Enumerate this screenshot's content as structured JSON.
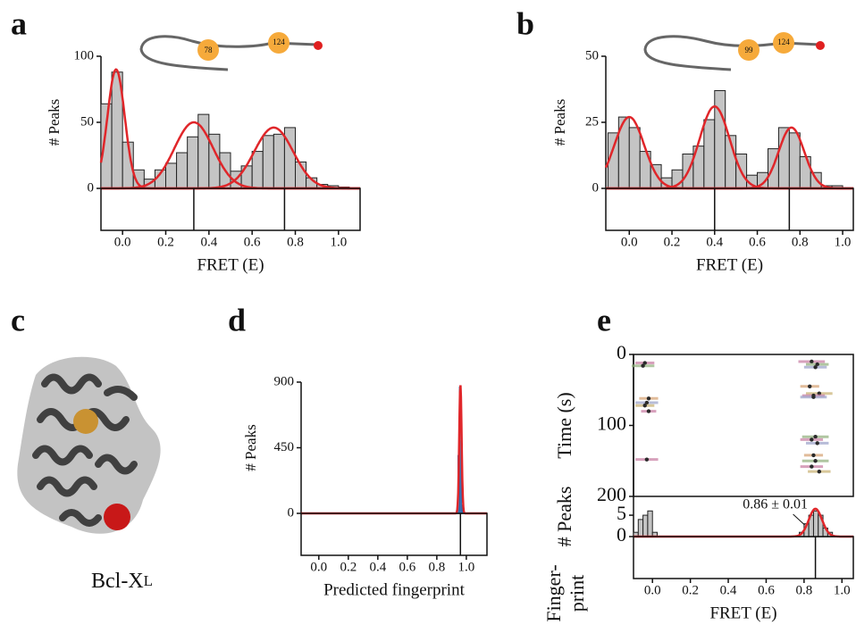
{
  "chart_data": [
    {
      "type": "histogram",
      "panel_label": "a",
      "xlabel": "FRET (E)",
      "ylabel": "# Peaks",
      "construct": [
        "78",
        "124"
      ],
      "bins": [
        -0.1,
        -0.05,
        0,
        0.05,
        0.1,
        0.15,
        0.2,
        0.25,
        0.3,
        0.35,
        0.4,
        0.45,
        0.5,
        0.55,
        0.6,
        0.65,
        0.7,
        0.75,
        0.8,
        0.85,
        0.9,
        0.95,
        1.0,
        1.05
      ],
      "values": [
        64,
        88,
        35,
        14,
        7,
        14,
        19,
        27,
        39,
        56,
        41,
        27,
        13,
        17,
        28,
        40,
        41,
        46,
        20,
        8,
        3,
        2,
        1
      ],
      "color": "#c4c4c4",
      "fit_color": "#e0262a",
      "fits": [
        {
          "amplitude": 90,
          "mean": -0.03,
          "sd": 0.04
        },
        {
          "amplitude": 50,
          "mean": 0.33,
          "sd": 0.09
        },
        {
          "amplitude": 46,
          "mean": 0.7,
          "sd": 0.09
        }
      ],
      "fingerprint": [
        0.33,
        0.75
      ],
      "xlim": [
        -0.1,
        1.1
      ],
      "ylim": [
        0,
        100
      ],
      "xticks": [
        {
          "value": 0,
          "label": "0.0"
        },
        0.2,
        0.4,
        0.6,
        0.8,
        {
          "value": 1,
          "label": "1.0"
        }
      ],
      "yticks": [
        0,
        50,
        100
      ]
    },
    {
      "type": "histogram",
      "panel_label": "b",
      "xlabel": "FRET (E)",
      "ylabel": "# Peaks",
      "construct": [
        "99",
        "124"
      ],
      "bins": [
        -0.1,
        -0.05,
        0,
        0.05,
        0.1,
        0.15,
        0.2,
        0.25,
        0.3,
        0.35,
        0.4,
        0.45,
        0.5,
        0.55,
        0.6,
        0.65,
        0.7,
        0.75,
        0.8,
        0.85,
        0.9,
        0.95,
        1.0,
        1.05
      ],
      "values": [
        21,
        27,
        23,
        14,
        9,
        4,
        7,
        13,
        16,
        26,
        37,
        20,
        13,
        5,
        6,
        15,
        23,
        21,
        12,
        6,
        1,
        1,
        0
      ],
      "color": "#c4c4c4",
      "fit_color": "#e0262a",
      "fits": [
        {
          "amplitude": 27,
          "mean": 0.0,
          "sd": 0.07
        },
        {
          "amplitude": 31,
          "mean": 0.4,
          "sd": 0.07
        },
        {
          "amplitude": 23,
          "mean": 0.76,
          "sd": 0.06
        }
      ],
      "fingerprint": [
        0.4,
        0.75
      ],
      "xlim": [
        -0.11,
        1.05
      ],
      "ylim": [
        0,
        50
      ],
      "xticks": [
        {
          "value": 0,
          "label": "0.0"
        },
        0.2,
        0.4,
        0.6,
        0.8,
        {
          "value": 1,
          "label": "1.0"
        }
      ],
      "yticks": [
        0,
        25,
        50
      ]
    },
    {
      "type": "histogram",
      "panel_label": "d",
      "xlabel": "Predicted fingerprint",
      "ylabel": "# Peaks",
      "bins": [
        0.92,
        0.93,
        0.94,
        0.95,
        0.96,
        0.97,
        0.98,
        0.99,
        1.0
      ],
      "values": [
        2,
        20,
        400,
        870,
        500,
        60,
        5,
        0
      ],
      "color": "#2a64a8",
      "fit_color": "#e0262a",
      "fits": [
        {
          "amplitude": 880,
          "mean": 0.96,
          "sd": 0.008
        }
      ],
      "fingerprint": [
        0.96
      ],
      "xlim": [
        -0.12,
        1.14
      ],
      "ylim": [
        0,
        900
      ],
      "xticks": [
        {
          "value": 0,
          "label": "0.0"
        },
        0.2,
        0.4,
        0.6,
        0.8,
        {
          "value": 1,
          "label": "1.0"
        }
      ],
      "yticks": [
        0,
        450,
        900
      ]
    },
    {
      "type": "scatter",
      "panel_label": "e",
      "ylabel": "Time (s)",
      "y_inverted": true,
      "x": [
        -0.04,
        -0.05,
        -0.02,
        -0.03,
        -0.04,
        -0.02,
        -0.03,
        0.84,
        0.87,
        0.86,
        0.83,
        0.88,
        0.85,
        0.86,
        0.84,
        0.87,
        0.85,
        0.86,
        0.84,
        0.88,
        0.85
      ],
      "values": [
        12,
        16,
        62,
        68,
        72,
        80,
        148,
        10,
        14,
        18,
        45,
        55,
        58,
        116,
        120,
        125,
        142,
        150,
        158,
        165,
        60
      ],
      "xerr": [
        0.05,
        0.06,
        0.05,
        0.06,
        0.05,
        0.04,
        0.06,
        0.07,
        0.06,
        0.06,
        0.05,
        0.07,
        0.06,
        0.07,
        0.06,
        0.06,
        0.05,
        0.07,
        0.06,
        0.06,
        0.07
      ],
      "colors": [
        "#c77aa0",
        "#8fae7a",
        "#d5a070",
        "#9aa0c8",
        "#c8b070",
        "#c77aa0",
        "#c77aa0",
        "#c77aa0",
        "#8fae7a",
        "#9aa0c8",
        "#d5a070",
        "#c8b070",
        "#c77aa0",
        "#8fae7a",
        "#c77aa0",
        "#9aa0c8",
        "#d5a070",
        "#8fae7a",
        "#c77aa0",
        "#c8b070",
        "#9aa0c8"
      ],
      "point_color": "#2a2a2a",
      "xlim": [
        -0.1,
        1.06
      ],
      "ylim": [
        0,
        200
      ],
      "yticks": [
        0,
        100,
        200
      ]
    },
    {
      "type": "histogram",
      "xlabel": "FRET (E)",
      "ylabel": "# Peaks",
      "fingerprint_label": [
        "Finger-",
        "print"
      ],
      "annotation": "0.86 ± 0.01",
      "bins": [
        -0.1,
        -0.075,
        -0.05,
        -0.025,
        0,
        0.025,
        0.05,
        0.075,
        0.1,
        0.125,
        0.15,
        0.175,
        0.2,
        0.225,
        0.25,
        0.275,
        0.3,
        0.325,
        0.35,
        0.375,
        0.4,
        0.425,
        0.45,
        0.475,
        0.5,
        0.525,
        0.55,
        0.575,
        0.6,
        0.625,
        0.65,
        0.675,
        0.7,
        0.725,
        0.75,
        0.775,
        0.8,
        0.825,
        0.85,
        0.875,
        0.9,
        0.925,
        0.95,
        0.975,
        1.0
      ],
      "values": [
        1,
        4,
        5,
        6,
        1,
        0,
        0,
        0,
        0,
        0,
        0,
        0,
        0,
        0,
        0,
        0,
        0,
        0,
        0,
        0,
        0,
        0,
        0,
        0,
        0,
        0,
        0,
        0,
        0,
        0,
        0,
        0,
        0,
        0,
        0,
        1,
        3,
        5,
        6,
        5,
        2,
        1,
        0,
        0
      ],
      "color": "#c4c4c4",
      "fit_color": "#e0262a",
      "fits": [
        {
          "amplitude": 6.5,
          "mean": 0.86,
          "sd": 0.035
        }
      ],
      "fingerprint": [
        0.86
      ],
      "xlim": [
        -0.1,
        1.06
      ],
      "ylim": [
        0,
        9.4
      ],
      "xticks": [
        {
          "value": 0,
          "label": "0.0"
        },
        0.2,
        0.4,
        0.6,
        0.8,
        {
          "value": 1,
          "label": "1.0"
        }
      ],
      "yticks": [
        0,
        5
      ]
    }
  ],
  "panel_c": {
    "label": "c",
    "caption": "Bcl-X",
    "caption_sub": "L"
  }
}
